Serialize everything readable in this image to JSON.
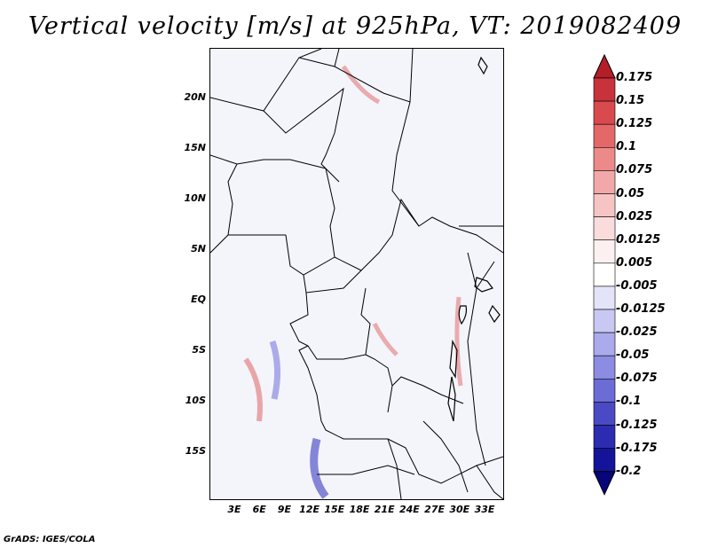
{
  "title": "Vertical velocity [m/s] at 925hPa, VT: 2019082409",
  "lat_labels": [
    "20N",
    "15N",
    "10N",
    "5N",
    "EQ",
    "5S",
    "10S",
    "15S"
  ],
  "lon_labels": [
    "3E",
    "6E",
    "9E",
    "12E",
    "15E",
    "18E",
    "21E",
    "24E",
    "27E",
    "30E",
    "33E"
  ],
  "colorbar": {
    "labels": [
      "0.175",
      "0.15",
      "0.125",
      "0.1",
      "0.075",
      "0.05",
      "0.025",
      "0.0125",
      "0.005",
      "-0.005",
      "-0.0125",
      "-0.025",
      "-0.05",
      "-0.075",
      "-0.1",
      "-0.125",
      "-0.175",
      "-0.2"
    ],
    "colors": [
      "#b41e28",
      "#c8323a",
      "#d84a4e",
      "#e46868",
      "#ec8a8a",
      "#f2a8a8",
      "#f6c4c4",
      "#fadcdc",
      "#fdf0f0",
      "#ffffff",
      "#e4e4f8",
      "#c8c8f2",
      "#aaaaec",
      "#8c8ce2",
      "#6c6cd6",
      "#4a4ac4",
      "#2c2cb0",
      "#14149a",
      "#06067a"
    ]
  },
  "footer": "GrADS: IGES/COLA"
}
